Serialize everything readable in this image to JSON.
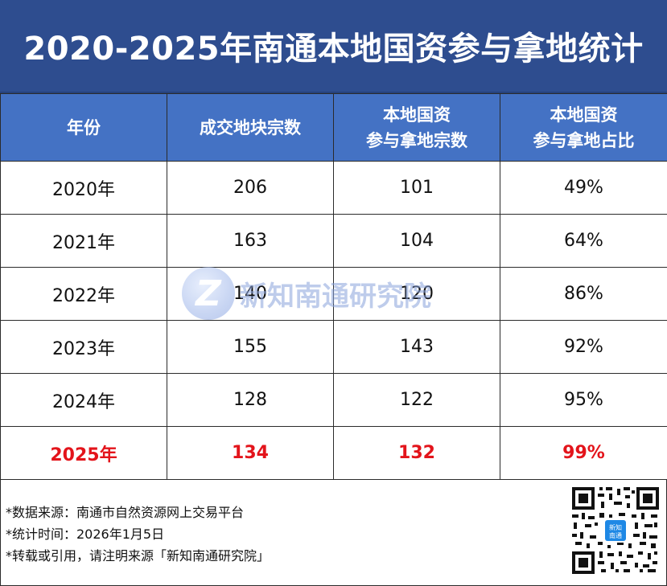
{
  "title": "2020-2025年南通本地国资参与拿地统计",
  "table": {
    "headers": [
      {
        "line1": "年份",
        "line2": ""
      },
      {
        "line1": "成交地块宗数",
        "line2": ""
      },
      {
        "line1": "本地国资",
        "line2": "参与拿地宗数"
      },
      {
        "line1": "本地国资",
        "line2": "参与拿地占比"
      }
    ],
    "rows": [
      {
        "year": "2020年",
        "deals": "206",
        "local": "101",
        "ratio": "49%"
      },
      {
        "year": "2021年",
        "deals": "163",
        "local": "104",
        "ratio": "64%"
      },
      {
        "year": "2022年",
        "deals": "140",
        "local": "120",
        "ratio": "86%"
      },
      {
        "year": "2023年",
        "deals": "155",
        "local": "143",
        "ratio": "92%"
      },
      {
        "year": "2024年",
        "deals": "128",
        "local": "122",
        "ratio": "95%"
      },
      {
        "year": "2025年",
        "deals": "134",
        "local": "132",
        "ratio": "99%"
      }
    ]
  },
  "watermark": {
    "logo_letter": "Z",
    "text": "新知南通研究院"
  },
  "notes": [
    "*数据来源：南通市自然资源网上交易平台",
    "*统计时间：2026年1月5日",
    "*转载或引用，请注明来源「新知南通研究院」"
  ],
  "qr": {
    "center_label_line1": "新知",
    "center_label_line2": "南通"
  },
  "colors": {
    "title_bg": "#2e4d8f",
    "header_bg": "#4472c4",
    "highlight_text": "#e3141b",
    "qr_center": "#1e88e5"
  }
}
